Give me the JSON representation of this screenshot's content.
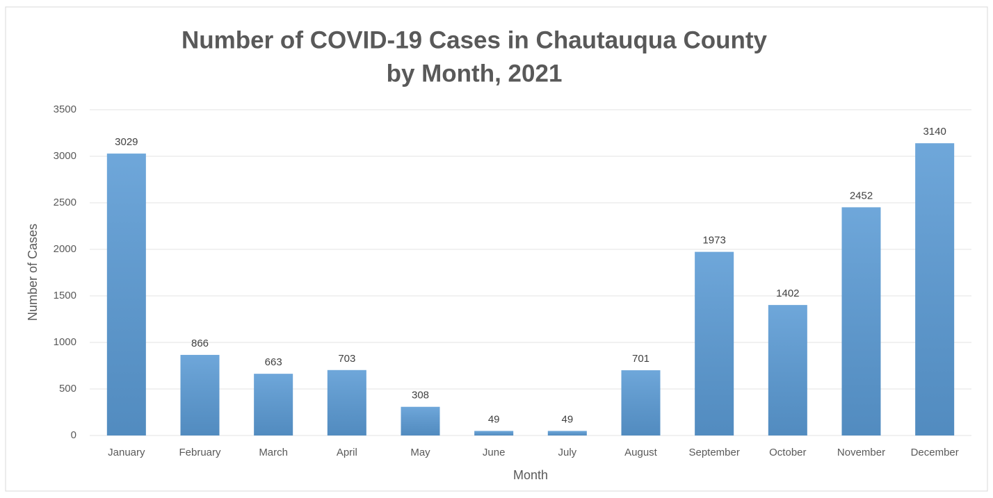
{
  "chart_data": {
    "type": "bar",
    "title": [
      "Number of COVID-19 Cases in Chautauqua County",
      "by Month, 2021"
    ],
    "x_label": "Month",
    "y_label": "Number of Cases",
    "categories": [
      "January",
      "February",
      "March",
      "April",
      "May",
      "June",
      "July",
      "August",
      "September",
      "October",
      "November",
      "December"
    ],
    "values": [
      3029,
      866,
      663,
      703,
      308,
      49,
      49,
      701,
      1973,
      1402,
      2452,
      3140
    ],
    "color": "#5b9bd5",
    "ylim": [
      0,
      3500
    ],
    "yticks": [
      0,
      500,
      1000,
      1500,
      2000,
      2500,
      3000,
      3500
    ],
    "grid": true
  }
}
